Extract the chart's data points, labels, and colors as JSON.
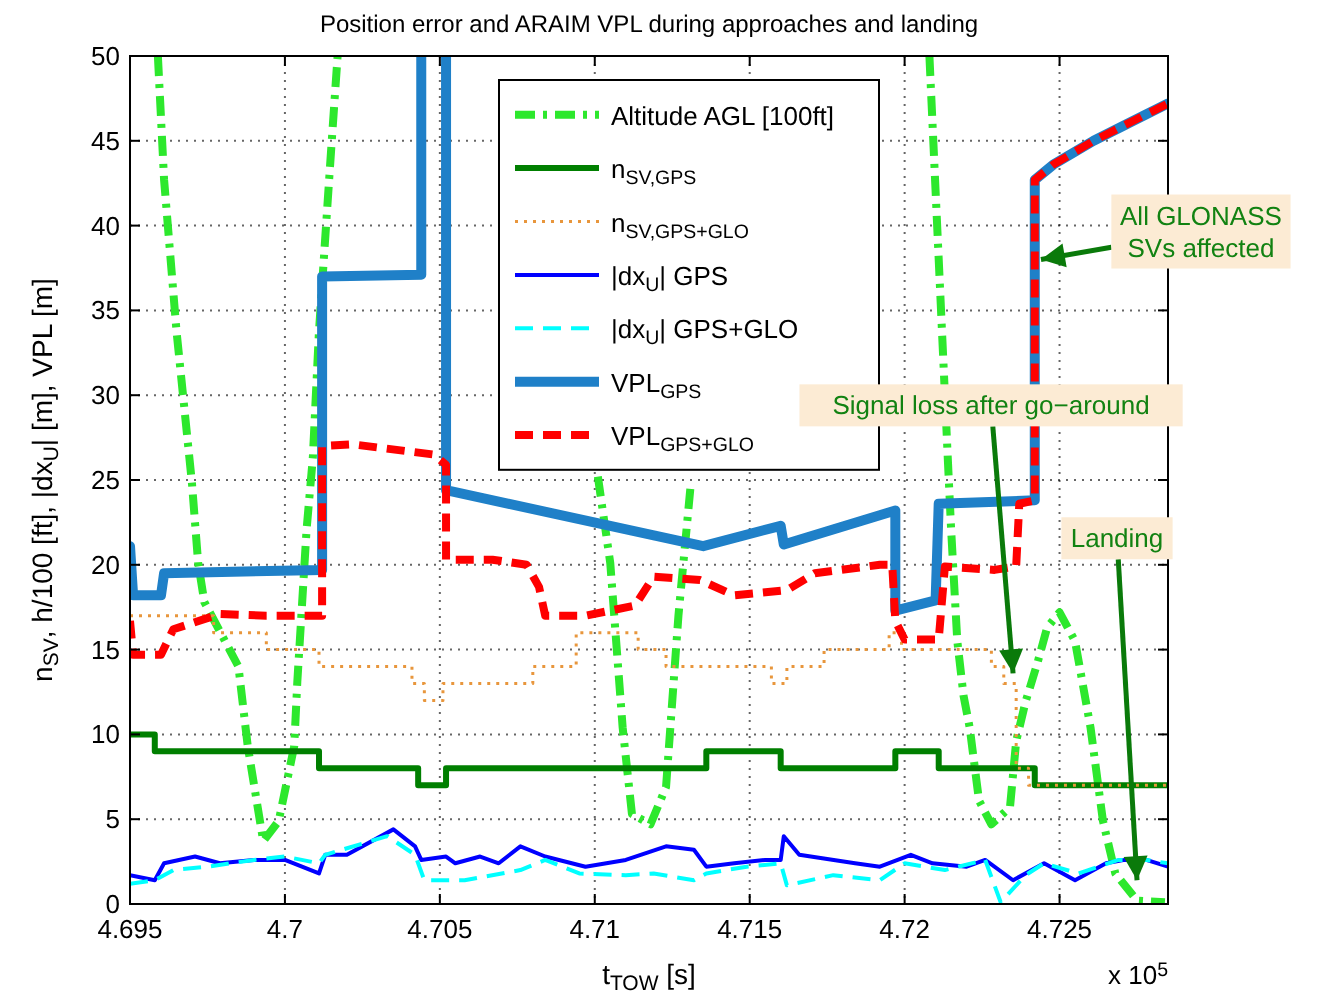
{
  "chart_data": {
    "type": "line",
    "title": "Position error and ARAIM VPL during approaches and landing",
    "xlabel": "t$_{TOW}$ [s]",
    "ylabel": "n$_{SV}$, h/100 [ft], |dx$_{U}$| [m], VPL [m]",
    "xlim": [
      4.695,
      4.7285
    ],
    "xticks": [
      4.695,
      4.7,
      4.705,
      4.71,
      4.715,
      4.72,
      4.725
    ],
    "ylim": [
      0,
      50
    ],
    "yticks": [
      0,
      5,
      10,
      15,
      20,
      25,
      30,
      35,
      40,
      45,
      50
    ],
    "grid": true,
    "legend": "top",
    "annotations": [
      "x 10$^{5}$",
      {
        "text": "All GLONASS SVs affected",
        "x": 4.7244,
        "y": 38
      },
      {
        "text": "Signal loss after go−around",
        "x": 4.7235,
        "y": 13.6
      },
      {
        "text": "Landing",
        "x": 4.7275,
        "y": 1.4
      }
    ],
    "series": [
      {
        "name": "Altitude AGL [100ft]",
        "line_style": "dashdot",
        "color": "#2de82d",
        "x": [
          4.6959,
          4.6961,
          4.6965,
          4.697,
          4.6972,
          4.6974,
          4.6985,
          4.6988,
          4.6993,
          4.6998,
          4.7003,
          4.7004,
          4.7007,
          4.7009,
          4.7011,
          4.7015,
          4.7017,
          4.705,
          4.7101,
          4.7105,
          4.7109,
          4.7112,
          4.7118,
          4.7123,
          4.7127,
          4.7131,
          4.717,
          4.7208,
          4.7214,
          4.7215,
          4.7217,
          4.7219,
          4.7221,
          4.7224,
          4.7228,
          4.7234,
          4.7236,
          4.7239,
          4.7243,
          4.7246,
          4.725,
          4.7255,
          4.726,
          4.7264,
          4.7268,
          4.7275,
          4.7284
        ],
        "values": [
          50,
          42.7,
          33.8,
          24.8,
          20.1,
          17.8,
          14,
          9.3,
          3.7,
          4.9,
          9.3,
          13.1,
          22.1,
          26.3,
          33.8,
          44.7,
          50,
          null,
          25.2,
          20.1,
          10.4,
          5.3,
          4.7,
          6.9,
          17,
          24.8,
          null,
          50,
          26,
          22.1,
          15.5,
          12.3,
          10.4,
          6.1,
          4.7,
          5.7,
          9.6,
          11.9,
          14.3,
          16.3,
          17.2,
          15.5,
          10.4,
          4.9,
          1.8,
          0.2,
          0.1
        ]
      },
      {
        "name": "n$_{SV,GPS}$",
        "type": "step",
        "line_style": "solid",
        "color": "#007f00",
        "x": [
          4.695,
          4.6958,
          4.7011,
          4.7043,
          4.7052,
          4.7136,
          4.716,
          4.7197,
          4.7211,
          4.7242,
          4.7285
        ],
        "values": [
          10,
          9,
          8,
          7,
          8,
          9,
          8,
          9,
          8,
          7,
          7
        ]
      },
      {
        "name": "n$_{SV,GPS+GLO}$",
        "type": "step",
        "line_style": "dotted",
        "color": "#e8963c",
        "x": [
          4.695,
          4.6977,
          4.6994,
          4.7011,
          4.7041,
          4.7045,
          4.7051,
          4.708,
          4.7094,
          4.7114,
          4.7123,
          4.7157,
          4.7162,
          4.7174,
          4.7195,
          4.7199,
          4.7228,
          4.7232,
          4.7236,
          4.724,
          4.7285
        ],
        "values": [
          17,
          16,
          15,
          14,
          13,
          12,
          13,
          14,
          16,
          15,
          14,
          13,
          14,
          15,
          16,
          15,
          14,
          13,
          8,
          7,
          7
        ]
      },
      {
        "name": "|dx$_{U}$| GPS",
        "line_style": "solid",
        "color": "#0000ff",
        "x": [
          4.695,
          4.6958,
          4.6961,
          4.6971,
          4.6979,
          4.699,
          4.7,
          4.7011,
          4.7013,
          4.702,
          4.7035,
          4.7042,
          4.7044,
          4.7052,
          4.7055,
          4.7063,
          4.7069,
          4.7076,
          4.7084,
          4.7097,
          4.711,
          4.7123,
          4.7132,
          4.7136,
          4.7145,
          4.7155,
          4.716,
          4.7161,
          4.7166,
          4.7184,
          4.7192,
          4.7202,
          4.7209,
          4.722,
          4.7226,
          4.7235,
          4.7245,
          4.7255,
          4.7265,
          4.7271,
          4.7278,
          4.7285
        ],
        "values": [
          1.7,
          1.4,
          2.4,
          2.8,
          2.4,
          2.6,
          2.6,
          1.8,
          2.9,
          2.9,
          4.4,
          3.4,
          2.6,
          2.8,
          2.4,
          2.8,
          2.4,
          3.4,
          2.8,
          2.2,
          2.6,
          3.4,
          3.2,
          2.2,
          2.4,
          2.6,
          2.6,
          4,
          2.9,
          2.4,
          2.2,
          2.9,
          2.4,
          2.2,
          2.6,
          1.4,
          2.4,
          1.4,
          2.4,
          2.6,
          2.6,
          2.2
        ]
      },
      {
        "name": "|dx$_{U}$| GPS+GLO",
        "line_style": "dashed",
        "color": "#00ffff",
        "x": [
          4.695,
          4.6958,
          4.6964,
          4.6975,
          4.699,
          4.7,
          4.7011,
          4.7013,
          4.7033,
          4.7042,
          4.7045,
          4.7058,
          4.7076,
          4.7084,
          4.7095,
          4.711,
          4.7119,
          4.7132,
          4.7136,
          4.7149,
          4.716,
          4.7162,
          4.7177,
          4.7192,
          4.72,
          4.7213,
          4.7226,
          4.7229,
          4.7231,
          4.7239,
          4.7245,
          4.7256,
          4.7269,
          4.7278,
          4.7285
        ],
        "values": [
          1.2,
          1.4,
          2,
          2.2,
          2.6,
          2.8,
          2.4,
          2.9,
          4,
          2.9,
          1.4,
          1.4,
          2,
          2.6,
          1.8,
          1.7,
          1.8,
          1.4,
          1.8,
          2.2,
          2.4,
          1.1,
          1.7,
          1.4,
          2.4,
          2,
          2.6,
          1.1,
          0.1,
          1.7,
          2.4,
          1.8,
          2.6,
          2.6,
          2.4
        ]
      },
      {
        "name": "VPL$_{GPS}$",
        "line_style": "solid",
        "color": "#1f80c8",
        "x": [
          4.695,
          4.6951,
          4.696,
          4.6961,
          4.7012,
          4.7012,
          4.7044,
          4.7044,
          4.7048,
          4.7052,
          4.7052,
          4.7135,
          4.716,
          4.7161,
          4.7197,
          4.7197,
          4.721,
          4.7211,
          4.7242,
          4.7242,
          4.7248,
          4.7261,
          4.7274,
          4.7285
        ],
        "values": [
          21.1,
          18.2,
          18.2,
          19.5,
          19.7,
          37,
          37.1,
          50,
          null,
          50,
          24.4,
          21.1,
          22.3,
          21.2,
          23.2,
          17.3,
          17.9,
          23.6,
          23.8,
          42.7,
          43.6,
          45,
          46.2,
          47.2
        ]
      },
      {
        "name": "VPL$_{GPS+GLO}$",
        "line_style": "dashed",
        "color": "#ff0000",
        "x": [
          4.695,
          4.6951,
          4.696,
          4.6964,
          4.6979,
          4.6994,
          4.7007,
          4.7012,
          4.7012,
          4.7022,
          4.7048,
          4.7052,
          4.7052,
          4.7067,
          4.7078,
          4.7082,
          4.7084,
          4.7097,
          4.7113,
          4.7119,
          4.7134,
          4.7145,
          4.7162,
          4.7171,
          4.7192,
          4.7196,
          4.7197,
          4.72,
          4.7211,
          4.7213,
          4.7229,
          4.7236,
          4.7237,
          4.7242,
          4.7242,
          4.7248,
          4.7261,
          4.7274,
          4.7285
        ],
        "values": [
          16.7,
          14.7,
          14.7,
          16.2,
          17.1,
          17,
          17,
          17,
          27,
          27.1,
          26.5,
          25.9,
          20.3,
          20.3,
          20,
          18.7,
          17,
          17,
          17.6,
          19.3,
          19.1,
          18.2,
          18.5,
          19.5,
          20,
          20,
          16.7,
          15.6,
          15.6,
          19.9,
          19.7,
          19.9,
          23.6,
          23.8,
          42.7,
          43.6,
          45,
          46.2,
          47.2
        ]
      }
    ]
  }
}
